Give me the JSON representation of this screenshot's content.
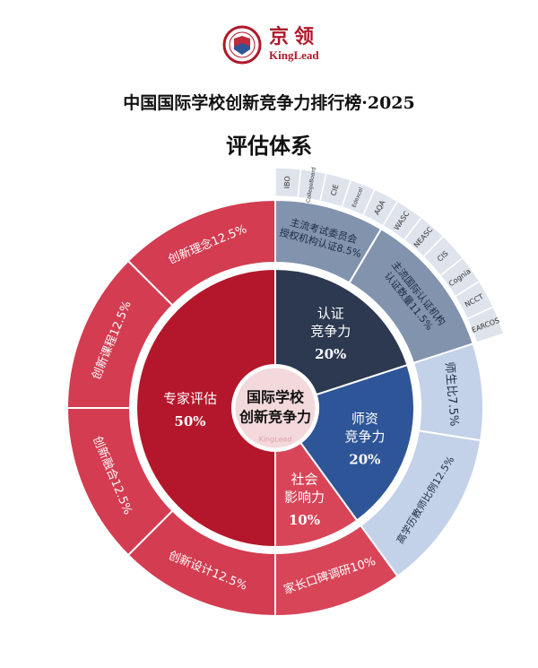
{
  "logo": {
    "cn": "京领",
    "en": "KingLead",
    "badge_text": "京 领"
  },
  "title": "中国国际学校创新竞争力排行榜·2025",
  "subtitle": "评估体系",
  "chart_data": {
    "type": "sunburst",
    "center": {
      "line1": "国际学校",
      "line2": "创新竞争力",
      "watermark": "KingLead"
    },
    "colors": {
      "expert": "#b4172b",
      "expert_ring": "#d33c51",
      "cert": "#2d3950",
      "cert_ring": "#8193ad",
      "teacher": "#2e5597",
      "teacher_ring": "#c3d2e9",
      "social": "#d84558",
      "social_ring": "#d84558",
      "outer": "#dfe4ec"
    },
    "inner": [
      {
        "key": "cert",
        "line1": "认证",
        "line2": "竞争力",
        "label": "20%",
        "value": 20
      },
      {
        "key": "teacher",
        "line1": "师资",
        "line2": "竞争力",
        "label": "20%",
        "value": 20
      },
      {
        "key": "social",
        "line1": "社会",
        "line2": "影响力",
        "label": "10%",
        "value": 10
      },
      {
        "key": "expert",
        "line1": "专家评估",
        "line2": "",
        "label": "50%",
        "value": 50
      }
    ],
    "middle": [
      {
        "parent": "cert",
        "line1": "主流考试委员会",
        "line2": "授权机构认证8.5%",
        "value": 8.5
      },
      {
        "parent": "cert",
        "line1": "主流国际认证机构",
        "line2": "认证数量11.5%",
        "value": 11.5
      },
      {
        "parent": "teacher",
        "line1": "师生比7.5%",
        "line2": "",
        "value": 7.5
      },
      {
        "parent": "teacher",
        "line1": "高学历教师比例12.5%",
        "line2": "",
        "value": 12.5
      },
      {
        "parent": "social",
        "line1": "家长口碑调研10%",
        "line2": "",
        "value": 10
      },
      {
        "parent": "expert",
        "line1": "创新设计12.5%",
        "line2": "",
        "value": 12.5
      },
      {
        "parent": "expert",
        "line1": "创新融合12.5%",
        "line2": "",
        "value": 12.5
      },
      {
        "parent": "expert",
        "line1": "创新课程12.5%",
        "line2": "",
        "value": 12.5
      },
      {
        "parent": "expert",
        "line1": "创新理念12.5%",
        "line2": "",
        "value": 12.5
      }
    ],
    "outer": [
      {
        "parent": 0,
        "items": [
          "IBO",
          "CollegeBoard",
          "CIE",
          "Edexcel",
          "AQA"
        ]
      },
      {
        "parent": 1,
        "items": [
          "WASC",
          "NEASC",
          "CIS",
          "Cognia",
          "NCCT",
          "EARCOS"
        ]
      }
    ]
  }
}
